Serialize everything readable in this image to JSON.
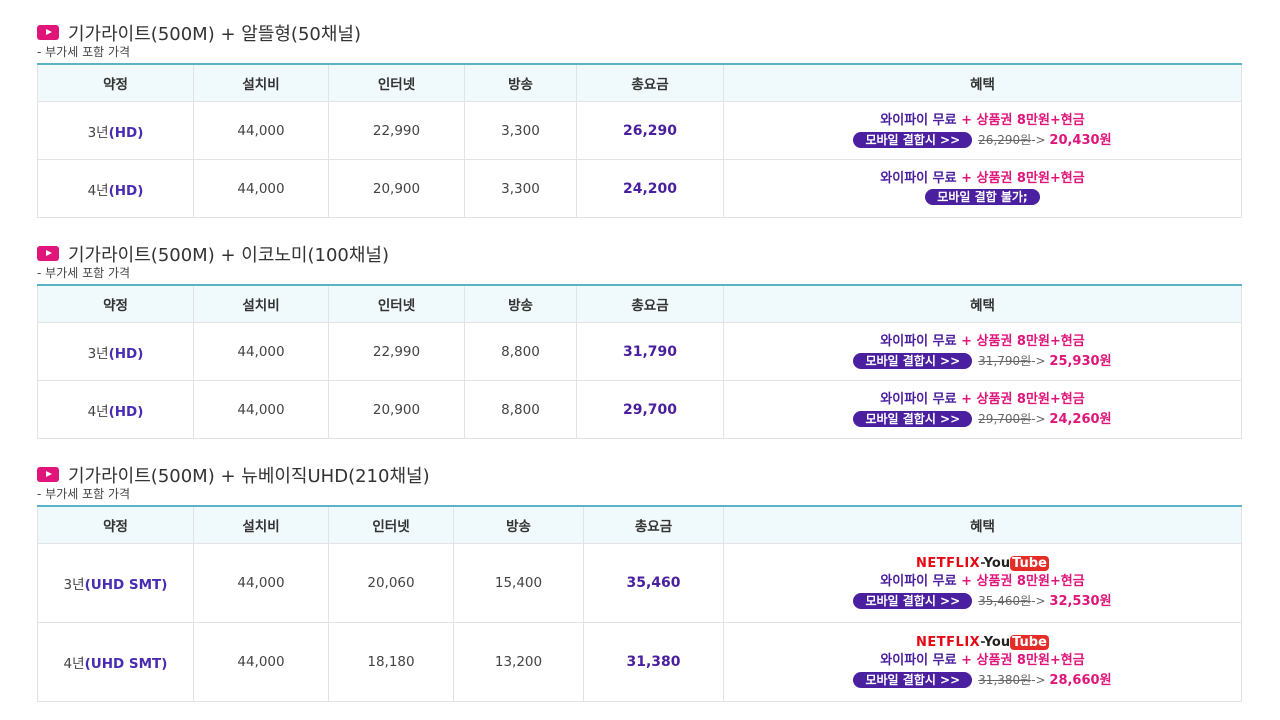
{
  "vat_note": "- 부가세 포함 가격",
  "headers": {
    "term": "약정",
    "install": "설치비",
    "internet": "인터넷",
    "tv": "방송",
    "total": "총요금",
    "benefit": "혜택"
  },
  "benefit_common": {
    "wifi": "와이파이 무료",
    "plus": " + ",
    "gift": "상품권 8만원+현금",
    "mobile_btn": "모바일 결합시 >>",
    "mobile_na": "모바일 결합 불가;",
    "arrow": "-> ",
    "netflix": "NETFLIX",
    "dash": "-",
    "you": "You",
    "tube": "Tube"
  },
  "sections": [
    {
      "title": "기가라이트(500M) + 알뜰형(50채널)",
      "rows": [
        {
          "term_num": "3년",
          "term_type": "(HD)",
          "install": "44,000",
          "internet": "22,990",
          "tv": "3,300",
          "total": "26,290",
          "old": "26,290원",
          "new": "20,430원"
        },
        {
          "term_num": "4년",
          "term_type": "(HD)",
          "install": "44,000",
          "internet": "20,900",
          "tv": "3,300",
          "total": "24,200"
        }
      ]
    },
    {
      "title": "기가라이트(500M) + 이코노미(100채널)",
      "rows": [
        {
          "term_num": "3년",
          "term_type": "(HD)",
          "install": "44,000",
          "internet": "22,990",
          "tv": "8,800",
          "total": "31,790",
          "old": "31,790원",
          "new": "25,930원"
        },
        {
          "term_num": "4년",
          "term_type": "(HD)",
          "install": "44,000",
          "internet": "20,900",
          "tv": "8,800",
          "total": "29,700",
          "old": "29,700원",
          "new": "24,260원"
        }
      ]
    },
    {
      "title": "기가라이트(500M) + 뉴베이직UHD(210채널)",
      "rows": [
        {
          "term_num": "3년",
          "term_type": "(UHD SMT)",
          "install": "44,000",
          "internet": "20,060",
          "tv": "15,400",
          "total": "35,460",
          "old": "35,460원",
          "new": "32,530원"
        },
        {
          "term_num": "4년",
          "term_type": "(UHD SMT)",
          "install": "44,000",
          "internet": "18,180",
          "tv": "13,200",
          "total": "31,380",
          "old": "31,380원",
          "new": "28,660원"
        }
      ]
    }
  ]
}
